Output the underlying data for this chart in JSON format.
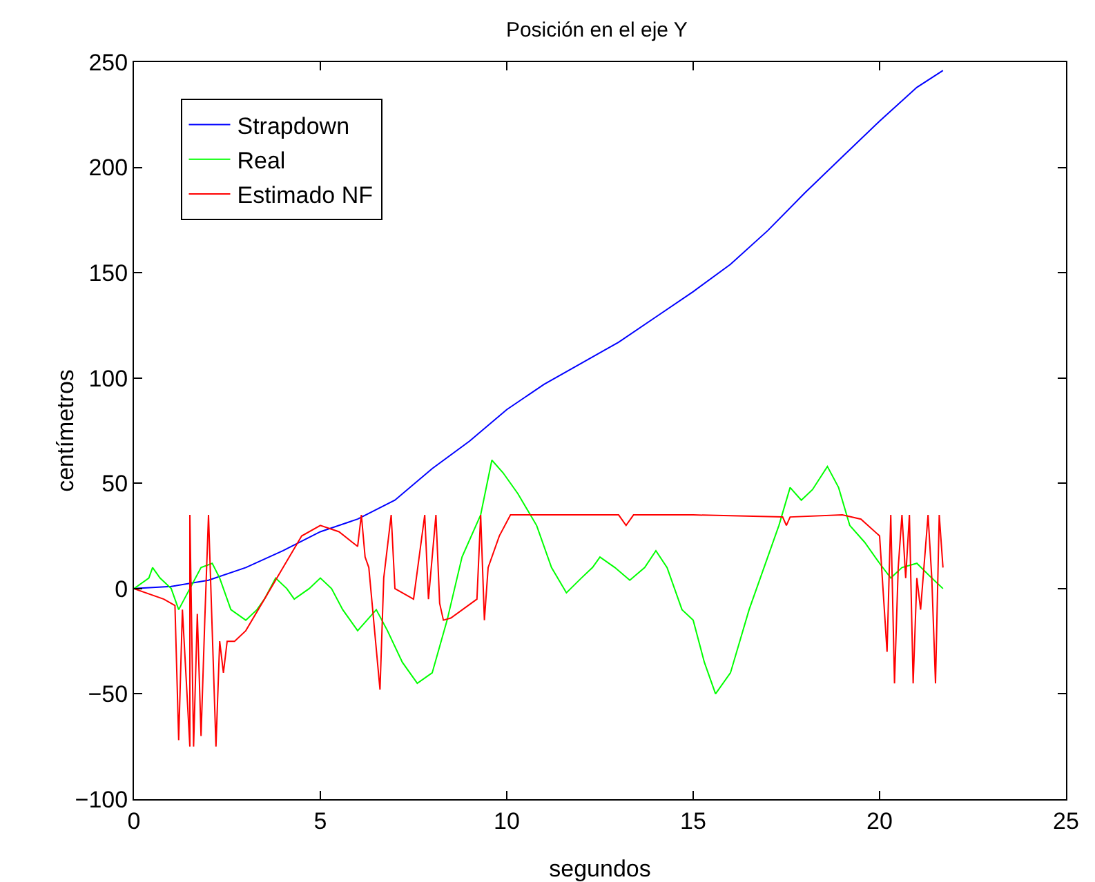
{
  "chart_data": {
    "type": "line",
    "title": "Posición en el eje Y",
    "xlabel": "segundos",
    "ylabel": "centímetros",
    "xlim": [
      0,
      25
    ],
    "xticks": [
      0,
      5,
      10,
      15,
      20,
      25
    ],
    "ylim": [
      -100,
      250
    ],
    "yticks": [
      -100,
      -50,
      0,
      50,
      100,
      150,
      200,
      250
    ],
    "grid": false,
    "legend": "top left",
    "marker": "none",
    "line_style": "solid",
    "series": [
      {
        "name": "Strapdown",
        "color": "#0000ff",
        "x": [
          0,
          1,
          2,
          3,
          4,
          5,
          6,
          7,
          8,
          9,
          10,
          11,
          12,
          13,
          14,
          15,
          16,
          17,
          18,
          19,
          20,
          21,
          21.7
        ],
        "values": [
          0,
          1,
          4,
          10,
          18,
          27,
          33,
          42,
          57,
          70,
          85,
          97,
          107,
          117,
          129,
          141,
          154,
          170,
          188,
          205,
          222,
          238,
          246
        ]
      },
      {
        "name": "Real",
        "color": "#00ff00",
        "x": [
          0,
          0.4,
          0.5,
          0.7,
          1,
          1.2,
          1.5,
          1.8,
          2.1,
          2.3,
          2.6,
          3,
          3.3,
          3.5,
          3.8,
          4.1,
          4.3,
          4.7,
          5,
          5.3,
          5.6,
          6,
          6.5,
          6.8,
          7.2,
          7.6,
          8,
          8.4,
          8.8,
          9.3,
          9.6,
          9.9,
          10.3,
          10.8,
          11.2,
          11.6,
          12,
          12.3,
          12.5,
          12.9,
          13.3,
          13.7,
          14,
          14.3,
          14.7,
          15,
          15.3,
          15.6,
          16,
          16.5,
          17,
          17.3,
          17.6,
          17.9,
          18.2,
          18.6,
          18.9,
          19.2,
          19.6,
          20,
          20.3,
          20.6,
          21,
          21.4,
          21.7
        ],
        "values": [
          0,
          5,
          10,
          5,
          0,
          -10,
          0,
          10,
          12,
          5,
          -10,
          -15,
          -10,
          -5,
          5,
          0,
          -5,
          0,
          5,
          0,
          -10,
          -20,
          -10,
          -20,
          -35,
          -45,
          -40,
          -15,
          15,
          35,
          61,
          55,
          45,
          30,
          10,
          -2,
          5,
          10,
          15,
          10,
          4,
          10,
          18,
          10,
          -10,
          -15,
          -35,
          -50,
          -40,
          -10,
          15,
          30,
          48,
          42,
          47,
          58,
          48,
          30,
          22,
          12,
          5,
          10,
          12,
          5,
          0
        ]
      },
      {
        "name": "Estimado NF",
        "color": "#ff0000",
        "x": [
          0,
          0.8,
          1.1,
          1.2,
          1.3,
          1.5,
          1.5,
          1.6,
          1.7,
          1.8,
          1.9,
          2.0,
          2.1,
          2.2,
          2.3,
          2.4,
          2.5,
          2.7,
          3,
          3.5,
          4,
          4.5,
          5,
          5.5,
          6,
          6.1,
          6.2,
          6.3,
          6.6,
          6.7,
          6.9,
          7,
          7.5,
          7.8,
          7.9,
          8.1,
          8.2,
          8.3,
          8.5,
          9.2,
          9.3,
          9.4,
          9.5,
          9.8,
          10.1,
          11,
          12,
          13,
          13.2,
          13.4,
          15,
          17.4,
          17.5,
          17.6,
          19,
          19.5,
          20,
          20.2,
          20.3,
          20.4,
          20.5,
          20.6,
          20.7,
          20.8,
          20.9,
          21,
          21.1,
          21.3,
          21.4,
          21.5,
          21.6,
          21.7
        ],
        "values": [
          0,
          -5,
          -8,
          -72,
          -10,
          -75,
          35,
          -75,
          -12,
          -70,
          -15,
          35,
          -20,
          -75,
          -25,
          -40,
          -25,
          -25,
          -20,
          -5,
          10,
          25,
          30,
          27,
          20,
          35,
          15,
          10,
          -48,
          5,
          35,
          0,
          -5,
          35,
          -5,
          35,
          -7,
          -15,
          -14,
          -5,
          35,
          -15,
          10,
          25,
          35,
          35,
          35,
          35,
          30,
          35,
          35,
          34,
          30,
          34,
          35,
          33,
          25,
          -30,
          35,
          -45,
          10,
          35,
          5,
          35,
          -45,
          5,
          -10,
          35,
          5,
          -45,
          35,
          10
        ]
      }
    ]
  }
}
